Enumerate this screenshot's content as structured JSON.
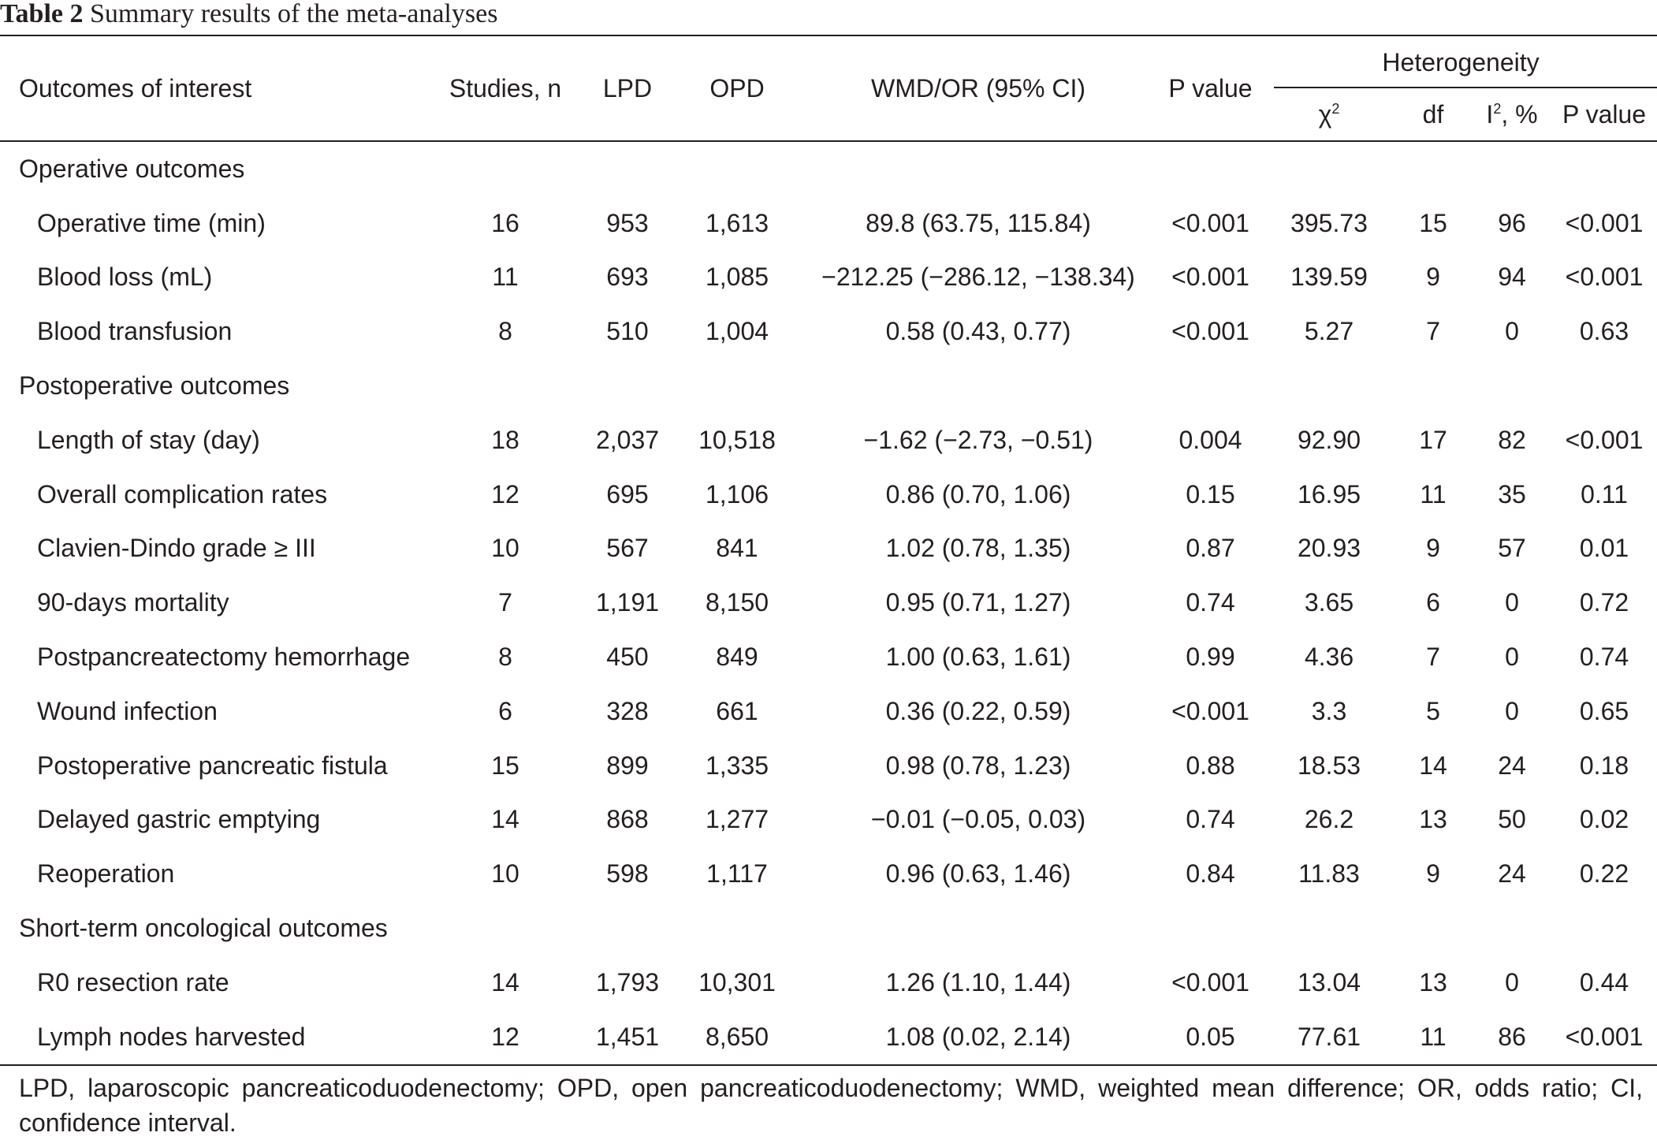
{
  "title": {
    "label": "Table 2",
    "text": "Summary results of the meta-analyses"
  },
  "headers": {
    "outcomes": "Outcomes of interest",
    "studies": "Studies, n",
    "lpd": "LPD",
    "opd": "OPD",
    "wmd": "WMD/OR (95% CI)",
    "pvalue": "P value",
    "heterogeneity": "Heterogeneity",
    "chi_sym": "χ",
    "chi_sup": "2",
    "df": "df",
    "i_pre": "I",
    "i_sup": "2",
    "i_post": ", %",
    "het_pvalue": "P value"
  },
  "groups": [
    {
      "name": "Operative outcomes",
      "rows": [
        {
          "outcome": "Operative time (min)",
          "studies": "16",
          "lpd": "953",
          "opd": "1,613",
          "wmd": "89.8 (63.75, 115.84)",
          "p": "<0.001",
          "chi2": "395.73",
          "df": "15",
          "i2": "96",
          "hp": "<0.001"
        },
        {
          "outcome": "Blood loss (mL)",
          "studies": "11",
          "lpd": "693",
          "opd": "1,085",
          "wmd": "−212.25 (−286.12, −138.34)",
          "p": "<0.001",
          "chi2": "139.59",
          "df": "9",
          "i2": "94",
          "hp": "<0.001"
        },
        {
          "outcome": "Blood transfusion",
          "studies": "8",
          "lpd": "510",
          "opd": "1,004",
          "wmd": "0.58 (0.43, 0.77)",
          "p": "<0.001",
          "chi2": "5.27",
          "df": "7",
          "i2": "0",
          "hp": "0.63"
        }
      ]
    },
    {
      "name": "Postoperative outcomes",
      "rows": [
        {
          "outcome": "Length of stay (day)",
          "studies": "18",
          "lpd": "2,037",
          "opd": "10,518",
          "wmd": "−1.62 (−2.73, −0.51)",
          "p": "0.004",
          "chi2": "92.90",
          "df": "17",
          "i2": "82",
          "hp": "<0.001"
        },
        {
          "outcome": "Overall complication rates",
          "studies": "12",
          "lpd": "695",
          "opd": "1,106",
          "wmd": "0.86 (0.70, 1.06)",
          "p": "0.15",
          "chi2": "16.95",
          "df": "11",
          "i2": "35",
          "hp": "0.11"
        },
        {
          "outcome": "Clavien-Dindo grade ≥ III",
          "studies": "10",
          "lpd": "567",
          "opd": "841",
          "wmd": "1.02 (0.78, 1.35)",
          "p": "0.87",
          "chi2": "20.93",
          "df": "9",
          "i2": "57",
          "hp": "0.01"
        },
        {
          "outcome": "90-days mortality",
          "studies": "7",
          "lpd": "1,191",
          "opd": "8,150",
          "wmd": "0.95 (0.71, 1.27)",
          "p": "0.74",
          "chi2": "3.65",
          "df": "6",
          "i2": "0",
          "hp": "0.72"
        },
        {
          "outcome": "Postpancreatectomy hemorrhage",
          "studies": "8",
          "lpd": "450",
          "opd": "849",
          "wmd": "1.00 (0.63, 1.61)",
          "p": "0.99",
          "chi2": "4.36",
          "df": "7",
          "i2": "0",
          "hp": "0.74"
        },
        {
          "outcome": "Wound infection",
          "studies": "6",
          "lpd": "328",
          "opd": "661",
          "wmd": "0.36 (0.22, 0.59)",
          "p": "<0.001",
          "chi2": "3.3",
          "df": "5",
          "i2": "0",
          "hp": "0.65"
        },
        {
          "outcome": "Postoperative pancreatic fistula",
          "studies": "15",
          "lpd": "899",
          "opd": "1,335",
          "wmd": "0.98 (0.78, 1.23)",
          "p": "0.88",
          "chi2": "18.53",
          "df": "14",
          "i2": "24",
          "hp": "0.18"
        },
        {
          "outcome": "Delayed gastric emptying",
          "studies": "14",
          "lpd": "868",
          "opd": "1,277",
          "wmd": "−0.01 (−0.05, 0.03)",
          "p": "0.74",
          "chi2": "26.2",
          "df": "13",
          "i2": "50",
          "hp": "0.02"
        },
        {
          "outcome": "Reoperation",
          "studies": "10",
          "lpd": "598",
          "opd": "1,117",
          "wmd": "0.96 (0.63, 1.46)",
          "p": "0.84",
          "chi2": "11.83",
          "df": "9",
          "i2": "24",
          "hp": "0.22"
        }
      ]
    },
    {
      "name": "Short-term oncological outcomes",
      "rows": [
        {
          "outcome": "R0 resection rate",
          "studies": "14",
          "lpd": "1,793",
          "opd": "10,301",
          "wmd": "1.26 (1.10, 1.44)",
          "p": "<0.001",
          "chi2": "13.04",
          "df": "13",
          "i2": "0",
          "hp": "0.44"
        },
        {
          "outcome": "Lymph nodes harvested",
          "studies": "12",
          "lpd": "1,451",
          "opd": "8,650",
          "wmd": "1.08 (0.02, 2.14)",
          "p": "0.05",
          "chi2": "77.61",
          "df": "11",
          "i2": "86",
          "hp": "<0.001"
        }
      ]
    }
  ],
  "footnote": "LPD, laparoscopic pancreaticoduodenectomy; OPD, open pancreaticoduodenectomy; WMD, weighted mean difference; OR, odds ratio; CI, confidence interval."
}
